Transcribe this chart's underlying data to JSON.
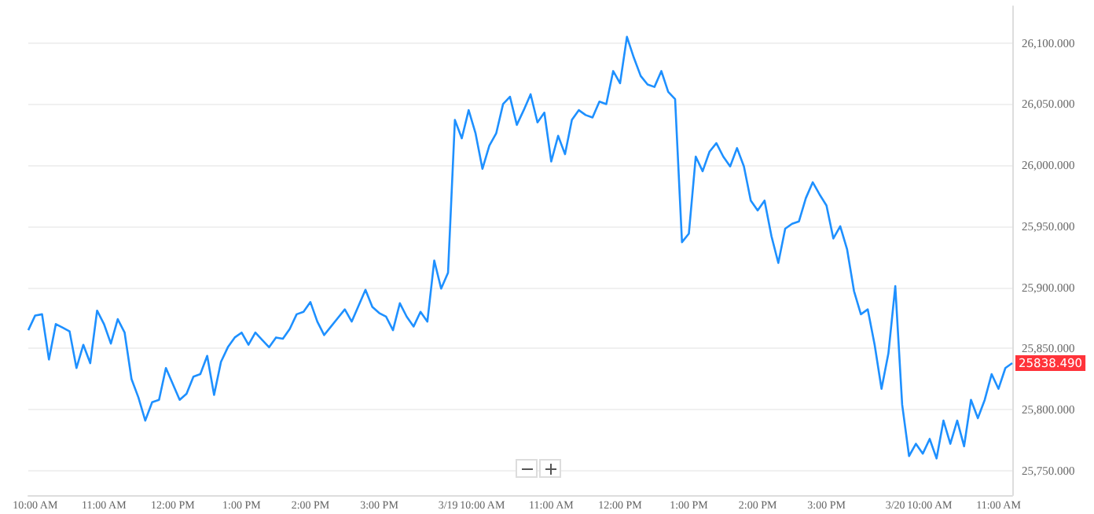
{
  "chart_data": {
    "type": "line",
    "categories": [
      null,
      "10:00 AM",
      null,
      null,
      null,
      null,
      null,
      null,
      null,
      null,
      null,
      "11:00 AM",
      null,
      null,
      null,
      null,
      null,
      null,
      null,
      null,
      null,
      "12:00 PM",
      null,
      null,
      null,
      null,
      null,
      null,
      null,
      null,
      null,
      "1:00 PM",
      null,
      null,
      null,
      null,
      null,
      null,
      null,
      null,
      null,
      "2:00 PM",
      null,
      null,
      null,
      null,
      null,
      null,
      null,
      null,
      null,
      "3:00 PM",
      null,
      null,
      null,
      null,
      null,
      null,
      null,
      null,
      null,
      "3/19",
      null,
      null,
      null,
      null,
      "10:00 AM",
      null,
      null,
      null,
      null,
      null,
      null,
      null,
      null,
      null,
      "11:00 AM",
      null,
      null,
      null,
      null,
      null,
      null,
      null,
      null,
      null,
      "12:00 PM",
      null,
      null,
      null,
      null,
      null,
      null,
      null,
      null,
      null,
      "1:00 PM",
      null,
      null,
      null,
      null,
      null,
      null,
      null,
      null,
      null,
      "2:00 PM",
      null,
      null,
      null,
      null,
      null,
      null,
      null,
      null,
      null,
      "3:00 PM",
      null,
      null,
      null,
      null,
      null,
      null,
      null,
      null,
      null,
      "3/20",
      null,
      null,
      null,
      null,
      "10:00 AM",
      null,
      null,
      null,
      null,
      null,
      null,
      null,
      null,
      null,
      "11:00 AM",
      null,
      null
    ],
    "series": [
      {
        "color": "#1e90ff",
        "values": [
          25865,
          25877,
          25878,
          25841,
          25870,
          25867,
          25864,
          25834,
          25853,
          25838,
          25881,
          25870,
          25854,
          25874,
          25863,
          25825,
          25810,
          25791,
          25806,
          25808,
          25834,
          25821,
          25808,
          25813,
          25827,
          25829,
          25844,
          25812,
          25839,
          25851,
          25859,
          25863,
          25853,
          25863,
          25857,
          25851,
          25859,
          25858,
          25866,
          25878,
          25880,
          25888,
          25872,
          25861,
          25868,
          25875,
          25882,
          25872,
          25885,
          25898,
          25884,
          25879,
          25876,
          25865,
          25887,
          25876,
          25868,
          25880,
          25872,
          25922,
          25899,
          25912,
          26037,
          26022,
          26045,
          26026,
          25997,
          26016,
          26026,
          26050,
          26056,
          26033,
          26045,
          26058,
          26035,
          26043,
          26003,
          26024,
          26009,
          26037,
          26045,
          26041,
          26039,
          26052,
          26050,
          26077,
          26067,
          26105,
          26088,
          26073,
          26066,
          26064,
          26077,
          26060,
          26054,
          25937,
          25944,
          26007,
          25995,
          26011,
          26018,
          26007,
          25999,
          26014,
          25999,
          25971,
          25963,
          25971,
          25942,
          25920,
          25948,
          25952,
          25954,
          25973,
          25986,
          25976,
          25967,
          25940,
          25950,
          25931,
          25897,
          25878,
          25882,
          25853,
          25817,
          25846,
          25901,
          25804,
          25762,
          25772,
          25764,
          25776,
          25760,
          25791,
          25772,
          25791,
          25770,
          25808,
          25793,
          25808,
          25829,
          25817,
          25834,
          25838
        ]
      }
    ],
    "ylim": [
      25730,
      26130
    ],
    "yticks": [
      {
        "value": 25750,
        "label": "25,750.000"
      },
      {
        "value": 25800,
        "label": "25,800.000"
      },
      {
        "value": 25850,
        "label": "25,850.000"
      },
      {
        "value": 25900,
        "label": "25,900.000"
      },
      {
        "value": 25950,
        "label": "25,950.000"
      },
      {
        "value": 26000,
        "label": "26,000.000"
      },
      {
        "value": 26050,
        "label": "26,050.000"
      },
      {
        "value": 26100,
        "label": "26,100.000"
      }
    ],
    "grid": "y",
    "annotations": [
      "25838.490"
    ],
    "marker": "none",
    "line_style": "solid"
  }
}
